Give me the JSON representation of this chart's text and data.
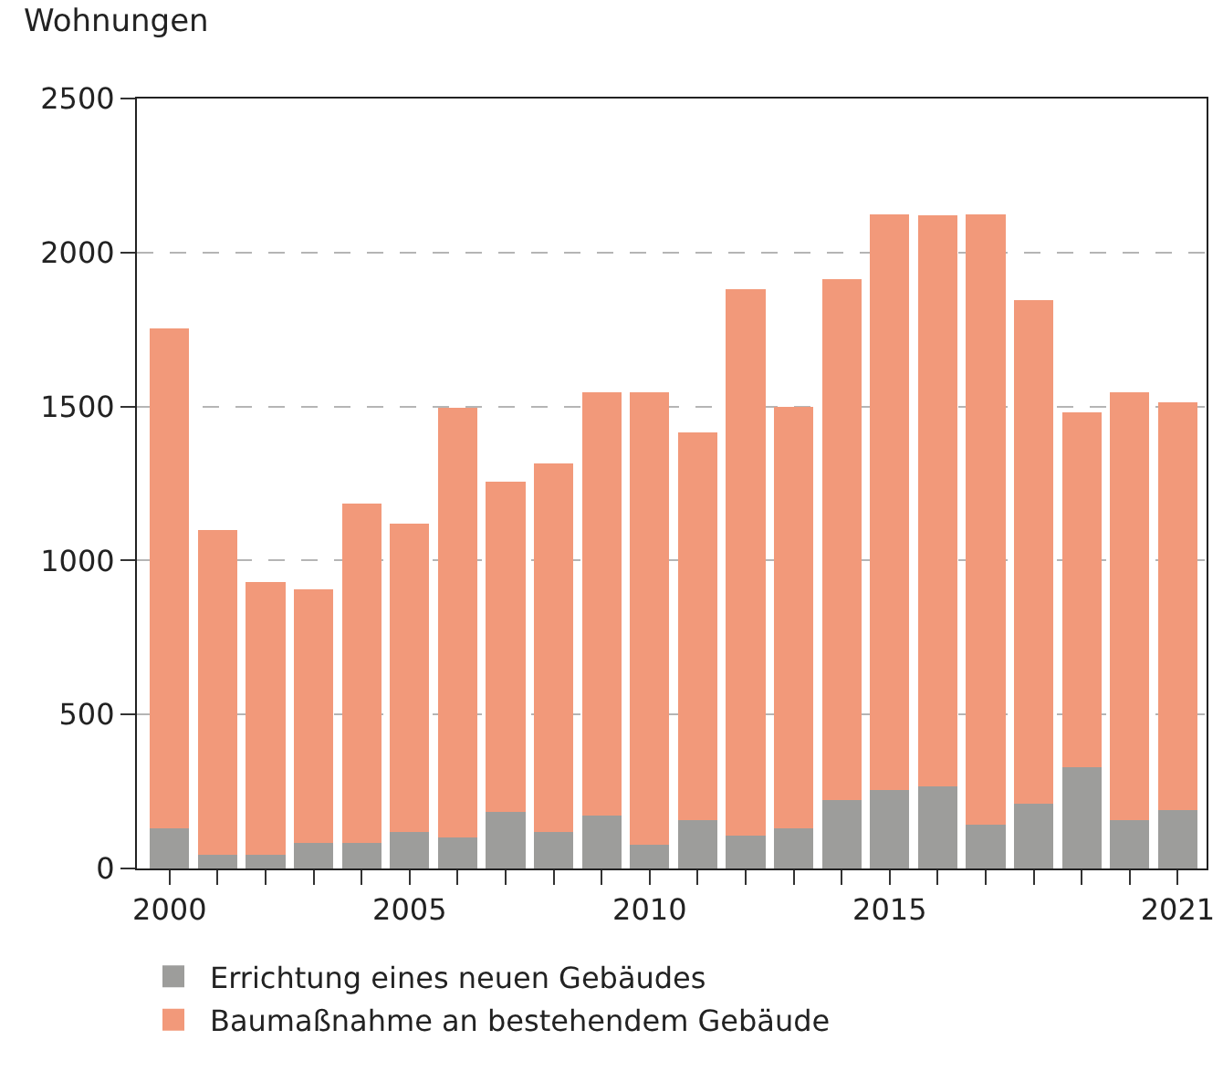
{
  "chart_data": {
    "type": "bar",
    "ylabel": "Wohnungen",
    "stacked": true,
    "x": [
      2000,
      2001,
      2002,
      2003,
      2004,
      2005,
      2006,
      2007,
      2008,
      2009,
      2010,
      2011,
      2012,
      2013,
      2014,
      2015,
      2016,
      2017,
      2018,
      2019,
      2020,
      2021
    ],
    "series": [
      {
        "name": "Errichtung eines neuen Gebäudes",
        "color": "#9d9d9b",
        "values": [
          130,
          44,
          44,
          82,
          82,
          119,
          100,
          184,
          119,
          172,
          77,
          158,
          107,
          130,
          221,
          256,
          268,
          142,
          210,
          329,
          158,
          191
        ]
      },
      {
        "name": "Baumaßnahme an bestehendem Gebäude",
        "color": "#f2997a",
        "values": [
          1625,
          1056,
          886,
          823,
          1103,
          1001,
          1395,
          1071,
          1196,
          1373,
          1468,
          1257,
          1773,
          1370,
          1694,
          1869,
          1852,
          1983,
          1635,
          1151,
          1387,
          1324
        ]
      }
    ],
    "xlim": [
      1999.32,
      2021.6
    ],
    "xticks": [
      2000,
      {
        "value": 2001,
        "label": null
      },
      {
        "value": 2002,
        "label": null
      },
      {
        "value": 2003,
        "label": null
      },
      {
        "value": 2004,
        "label": null
      },
      2005,
      {
        "value": 2006,
        "label": null
      },
      {
        "value": 2007,
        "label": null
      },
      {
        "value": 2008,
        "label": null
      },
      {
        "value": 2009,
        "label": null
      },
      2010,
      {
        "value": 2011,
        "label": null
      },
      {
        "value": 2012,
        "label": null
      },
      {
        "value": 2013,
        "label": null
      },
      {
        "value": 2014,
        "label": null
      },
      2015,
      {
        "value": 2016,
        "label": null
      },
      {
        "value": 2017,
        "label": null
      },
      {
        "value": 2018,
        "label": null
      },
      {
        "value": 2019,
        "label": null
      },
      {
        "value": 2020,
        "label": null
      },
      2021
    ],
    "ylim": [
      0,
      2500
    ],
    "yticks": [
      0,
      500,
      1000,
      1500,
      2000,
      2500
    ],
    "grid": "y",
    "legend": "bottom"
  }
}
